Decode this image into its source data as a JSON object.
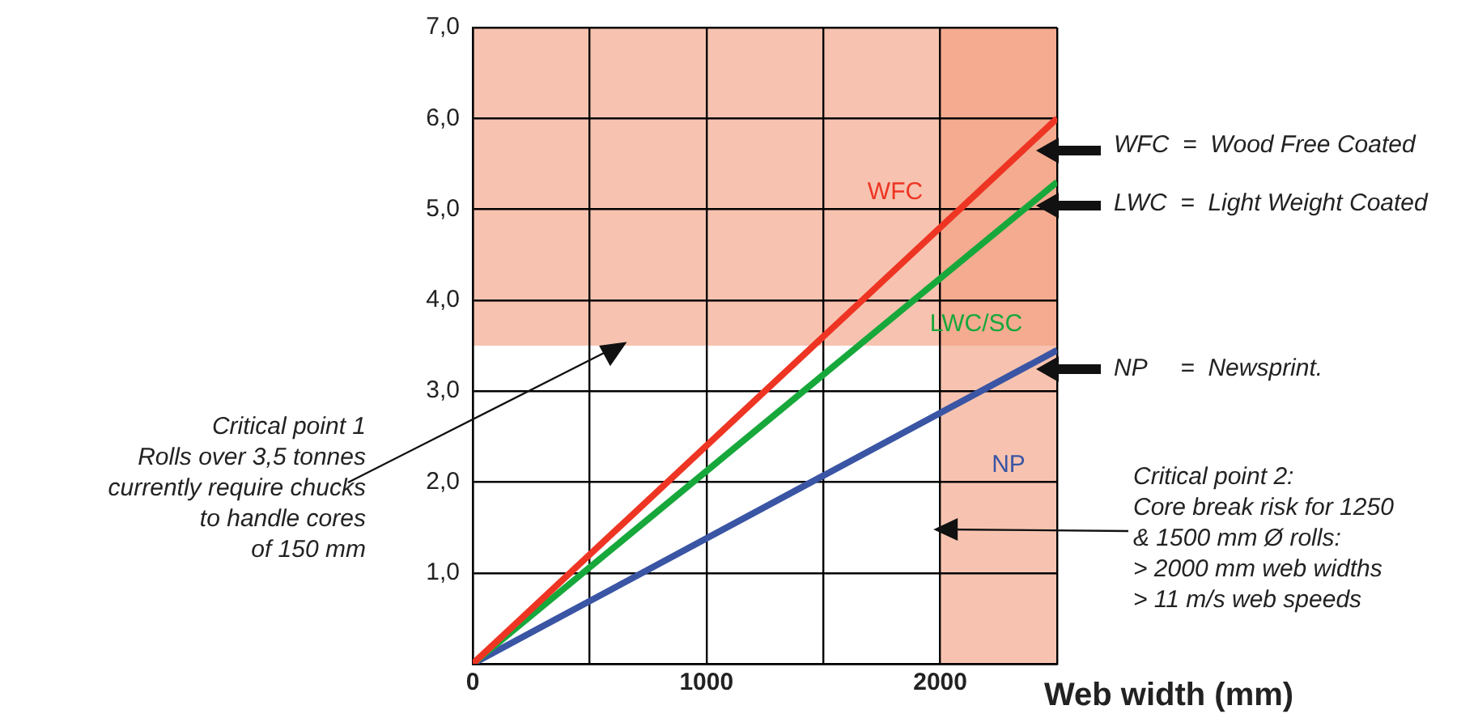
{
  "chart_data": {
    "type": "line",
    "xlabel": "Web width (mm)",
    "x": [
      0,
      2500
    ],
    "series": [
      {
        "name": "WFC",
        "color": "#ee3524",
        "values": [
          0,
          6.0
        ]
      },
      {
        "name": "LWC/SC",
        "color": "#17a83b",
        "values": [
          0,
          5.3
        ]
      },
      {
        "name": "NP",
        "color": "#3a55a4",
        "values": [
          0,
          3.45
        ]
      }
    ],
    "xlim": [
      0,
      2500
    ],
    "xticks": [
      0,
      {
        "value": 500,
        "label": null
      },
      1000,
      {
        "value": 1500,
        "label": null
      },
      2000,
      {
        "value": 2500,
        "label": null
      }
    ],
    "ylim": [
      0,
      7
    ],
    "yticks": [
      {
        "value": 0,
        "label": null
      },
      {
        "value": 1,
        "label": "1,0"
      },
      {
        "value": 2,
        "label": "2,0"
      },
      {
        "value": 3,
        "label": "3,0"
      },
      {
        "value": 4,
        "label": "4,0"
      },
      {
        "value": 5,
        "label": "5,0"
      },
      {
        "value": 6,
        "label": "6,0"
      },
      {
        "value": 7,
        "label": "7,0"
      }
    ],
    "bands": [
      {
        "axis": "y",
        "from": 3.5,
        "to": 7,
        "color": "#f29b7b"
      },
      {
        "axis": "x",
        "from": 2000,
        "to": 2500,
        "color": "#f29b7b"
      }
    ],
    "annotations": [
      "WFC  =  Wood Free Coated",
      "LWC  =  Light Weight Coated",
      "NP     =  Newsprint.",
      "Critical point 1\nRolls over 3,5 tonnes\ncurrently require chucks\nto handle cores\nof 150 mm",
      "Critical point 2:\nCore break risk for 1250\n& 1500 mm Ø rolls:\n> 2000 mm web widths\n> 11 m/s web speeds"
    ],
    "grid": true,
    "legend": false,
    "marker": "none",
    "line_style": "solid"
  }
}
